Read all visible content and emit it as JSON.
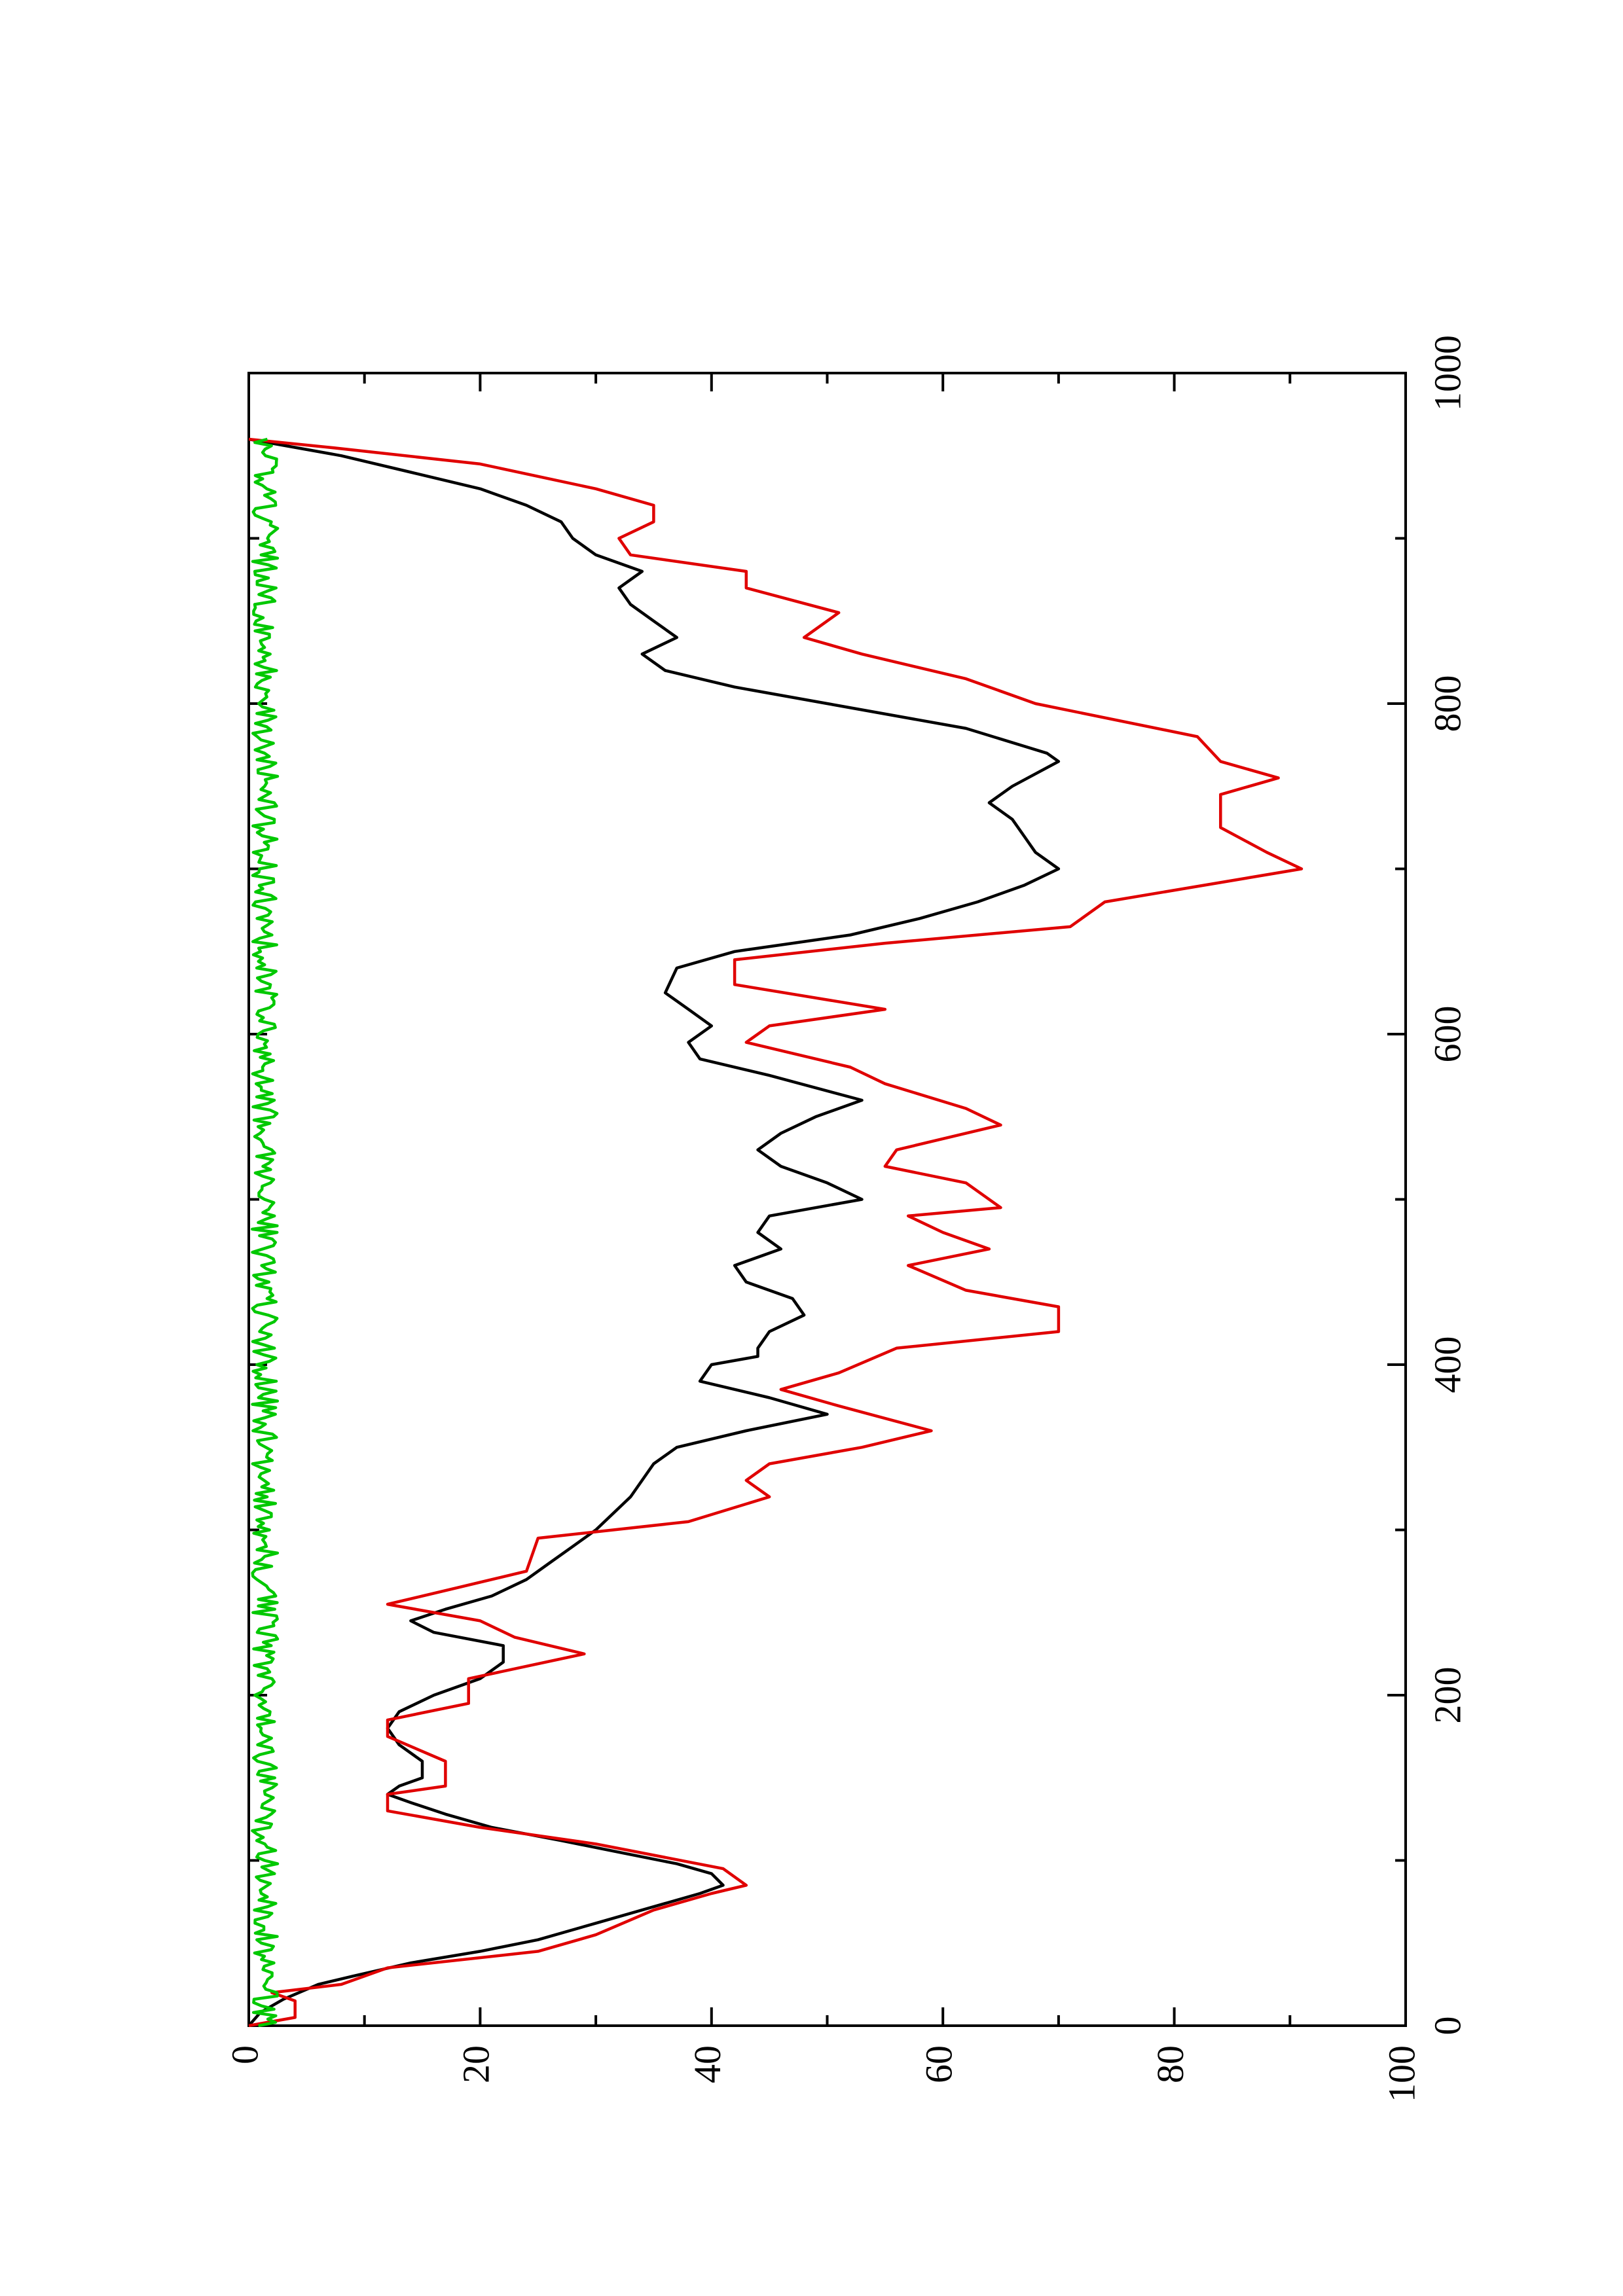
{
  "chart_data": {
    "type": "line",
    "orientation": "rotated 90° counter-clockwise (page landscape plot)",
    "xlim": [
      0,
      1000
    ],
    "ylim": [
      0,
      100
    ],
    "x_ticks": [
      0,
      200,
      400,
      600,
      800,
      1000
    ],
    "y_ticks": [
      0,
      20,
      40,
      60,
      80,
      100
    ],
    "x_tick_labels": [
      "0",
      "200",
      "400",
      "600",
      "800",
      "1000"
    ],
    "y_tick_labels": [
      "0",
      "20",
      "40",
      "60",
      "80",
      "100"
    ],
    "x_minor_ticks": [
      100,
      300,
      500,
      700,
      900
    ],
    "y_minor_ticks": [
      10,
      30,
      50,
      70,
      90
    ],
    "grid": false,
    "title": "",
    "xlabel": "",
    "ylabel": "",
    "series": [
      {
        "color": "#000000",
        "points": [
          [
            0,
            0
          ],
          [
            8,
            1
          ],
          [
            16,
            3
          ],
          [
            25,
            6
          ],
          [
            30,
            9
          ],
          [
            38,
            14
          ],
          [
            45,
            20
          ],
          [
            52,
            25
          ],
          [
            62,
            30
          ],
          [
            72,
            35
          ],
          [
            80,
            39
          ],
          [
            85,
            41
          ],
          [
            92,
            40
          ],
          [
            98,
            37
          ],
          [
            105,
            32
          ],
          [
            112,
            27
          ],
          [
            120,
            21
          ],
          [
            128,
            17
          ],
          [
            135,
            14
          ],
          [
            140,
            12
          ],
          [
            145,
            13
          ],
          [
            150,
            15
          ],
          [
            160,
            15
          ],
          [
            170,
            13
          ],
          [
            180,
            12
          ],
          [
            190,
            13
          ],
          [
            200,
            16
          ],
          [
            210,
            20
          ],
          [
            220,
            22
          ],
          [
            230,
            22
          ],
          [
            238,
            16
          ],
          [
            245,
            14
          ],
          [
            252,
            17
          ],
          [
            260,
            21
          ],
          [
            270,
            24
          ],
          [
            280,
            26
          ],
          [
            290,
            28
          ],
          [
            300,
            30
          ],
          [
            320,
            33
          ],
          [
            340,
            35
          ],
          [
            350,
            37
          ],
          [
            360,
            43
          ],
          [
            370,
            50
          ],
          [
            380,
            45
          ],
          [
            390,
            39
          ],
          [
            400,
            40
          ],
          [
            405,
            44
          ],
          [
            410,
            44
          ],
          [
            420,
            45
          ],
          [
            430,
            48
          ],
          [
            440,
            47
          ],
          [
            450,
            43
          ],
          [
            460,
            42
          ],
          [
            470,
            46
          ],
          [
            480,
            44
          ],
          [
            490,
            45
          ],
          [
            500,
            53
          ],
          [
            510,
            50
          ],
          [
            520,
            46
          ],
          [
            530,
            44
          ],
          [
            540,
            46
          ],
          [
            550,
            49
          ],
          [
            560,
            53
          ],
          [
            575,
            45
          ],
          [
            585,
            39
          ],
          [
            595,
            38
          ],
          [
            605,
            40
          ],
          [
            615,
            38
          ],
          [
            625,
            36
          ],
          [
            640,
            37
          ],
          [
            650,
            42
          ],
          [
            660,
            52
          ],
          [
            670,
            58
          ],
          [
            680,
            63
          ],
          [
            690,
            67
          ],
          [
            700,
            70
          ],
          [
            710,
            68
          ],
          [
            720,
            67
          ],
          [
            730,
            66
          ],
          [
            740,
            64
          ],
          [
            750,
            66
          ],
          [
            765,
            70
          ],
          [
            770,
            69
          ],
          [
            785,
            62
          ],
          [
            800,
            50
          ],
          [
            810,
            42
          ],
          [
            820,
            36
          ],
          [
            830,
            34
          ],
          [
            840,
            37
          ],
          [
            850,
            35
          ],
          [
            860,
            33
          ],
          [
            870,
            32
          ],
          [
            880,
            34
          ],
          [
            890,
            30
          ],
          [
            900,
            28
          ],
          [
            910,
            27
          ],
          [
            920,
            24
          ],
          [
            930,
            20
          ],
          [
            940,
            14
          ],
          [
            950,
            8
          ],
          [
            955,
            4
          ],
          [
            960,
            0
          ]
        ]
      },
      {
        "color": "#e00000",
        "points": [
          [
            0,
            0
          ],
          [
            5,
            4
          ],
          [
            15,
            4
          ],
          [
            20,
            2
          ],
          [
            25,
            8
          ],
          [
            35,
            12
          ],
          [
            45,
            25
          ],
          [
            55,
            30
          ],
          [
            70,
            35
          ],
          [
            80,
            40
          ],
          [
            85,
            43
          ],
          [
            95,
            41
          ],
          [
            110,
            30
          ],
          [
            120,
            20
          ],
          [
            130,
            12
          ],
          [
            140,
            12
          ],
          [
            145,
            17
          ],
          [
            160,
            17
          ],
          [
            175,
            12
          ],
          [
            185,
            12
          ],
          [
            195,
            19
          ],
          [
            210,
            19
          ],
          [
            225,
            29
          ],
          [
            235,
            23
          ],
          [
            245,
            20
          ],
          [
            255,
            12
          ],
          [
            265,
            18
          ],
          [
            275,
            24
          ],
          [
            295,
            25
          ],
          [
            305,
            38
          ],
          [
            320,
            45
          ],
          [
            330,
            43
          ],
          [
            340,
            45
          ],
          [
            350,
            53
          ],
          [
            360,
            59
          ],
          [
            375,
            51
          ],
          [
            385,
            46
          ],
          [
            395,
            51
          ],
          [
            410,
            56
          ],
          [
            420,
            70
          ],
          [
            435,
            70
          ],
          [
            445,
            62
          ],
          [
            460,
            57
          ],
          [
            470,
            64
          ],
          [
            480,
            60
          ],
          [
            490,
            57
          ],
          [
            495,
            65
          ],
          [
            510,
            62
          ],
          [
            520,
            55
          ],
          [
            530,
            56
          ],
          [
            545,
            65
          ],
          [
            555,
            62
          ],
          [
            570,
            55
          ],
          [
            580,
            52
          ],
          [
            595,
            43
          ],
          [
            605,
            45
          ],
          [
            615,
            55
          ],
          [
            630,
            42
          ],
          [
            645,
            42
          ],
          [
            655,
            55
          ],
          [
            665,
            71
          ],
          [
            680,
            74
          ],
          [
            700,
            91
          ],
          [
            710,
            88
          ],
          [
            725,
            84
          ],
          [
            745,
            84
          ],
          [
            755,
            89
          ],
          [
            765,
            84
          ],
          [
            780,
            82
          ],
          [
            800,
            68
          ],
          [
            815,
            62
          ],
          [
            830,
            53
          ],
          [
            840,
            48
          ],
          [
            855,
            51
          ],
          [
            870,
            43
          ],
          [
            880,
            43
          ],
          [
            890,
            33
          ],
          [
            900,
            32
          ],
          [
            910,
            35
          ],
          [
            920,
            35
          ],
          [
            930,
            30
          ],
          [
            945,
            20
          ],
          [
            955,
            7
          ],
          [
            960,
            0
          ]
        ]
      },
      {
        "color": "#00c800",
        "noise_amplitude": 2.2,
        "noise_seed": 7,
        "x_start": 0,
        "x_end": 960,
        "x_step": 2,
        "baseline": 0.3
      }
    ]
  }
}
